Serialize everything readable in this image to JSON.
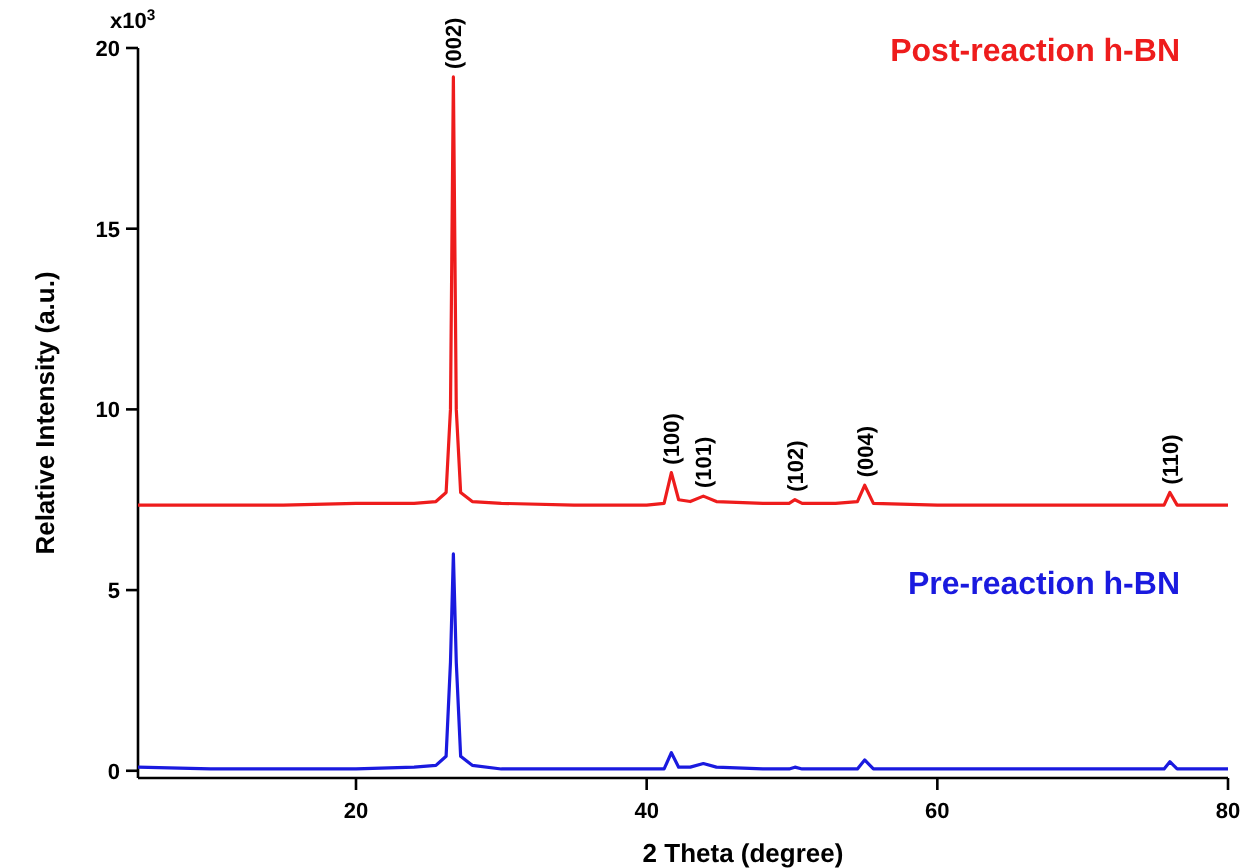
{
  "chart_data": {
    "type": "line",
    "xlabel": "2 Theta (degree)",
    "ylabel": "Relative Intensity (a.u.)",
    "x": [
      5,
      10,
      15,
      20,
      24,
      25.5,
      26.2,
      26.5,
      26.7,
      26.9,
      27.2,
      28,
      30,
      35,
      40,
      41.2,
      41.7,
      42.2,
      43,
      43.9,
      44.8,
      48,
      49.8,
      50.2,
      50.7,
      53,
      54.5,
      55.0,
      55.6,
      60,
      65,
      70,
      74,
      75.6,
      76.0,
      76.5,
      78,
      80
    ],
    "series": [
      {
        "name": "Post-reaction h-BN",
        "color": "#ee1c1c",
        "values": [
          7.35,
          7.35,
          7.35,
          7.4,
          7.4,
          7.45,
          7.7,
          10,
          19.2,
          10,
          7.7,
          7.45,
          7.4,
          7.35,
          7.35,
          7.4,
          8.25,
          7.5,
          7.45,
          7.6,
          7.45,
          7.4,
          7.4,
          7.5,
          7.4,
          7.4,
          7.45,
          7.9,
          7.4,
          7.35,
          7.35,
          7.35,
          7.35,
          7.35,
          7.7,
          7.35,
          7.35,
          7.35
        ]
      },
      {
        "name": "Pre-reaction h-BN",
        "color": "#1a1adf",
        "values": [
          0.1,
          0.05,
          0.05,
          0.05,
          0.1,
          0.15,
          0.4,
          3,
          6.0,
          3,
          0.4,
          0.15,
          0.05,
          0.05,
          0.05,
          0.05,
          0.5,
          0.1,
          0.1,
          0.2,
          0.1,
          0.05,
          0.05,
          0.1,
          0.05,
          0.05,
          0.05,
          0.3,
          0.05,
          0.05,
          0.05,
          0.05,
          0.05,
          0.05,
          0.25,
          0.05,
          0.05,
          0.05
        ]
      }
    ],
    "xlim": [
      5,
      80
    ],
    "xticks": [
      20,
      40,
      60,
      80
    ],
    "ylim": [
      -0.2,
      20
    ],
    "yticks": [
      0,
      5,
      10,
      15,
      20
    ],
    "grid": false,
    "legend": false,
    "marker": "none",
    "line_style": "solid",
    "annotations": [
      "x10$^{3}$",
      {
        "text": "(002)",
        "x": 26.7,
        "y": 19.2
      },
      {
        "text": "(100)",
        "x": 41.7,
        "y": 8.25
      },
      {
        "text": "(101)",
        "x": 43.9,
        "y": 7.6
      },
      {
        "text": "(102)",
        "x": 50.2,
        "y": 7.5
      },
      {
        "text": "(004)",
        "x": 55.0,
        "y": 7.9
      },
      {
        "text": "(110)",
        "x": 76.0,
        "y": 7.7
      }
    ]
  }
}
